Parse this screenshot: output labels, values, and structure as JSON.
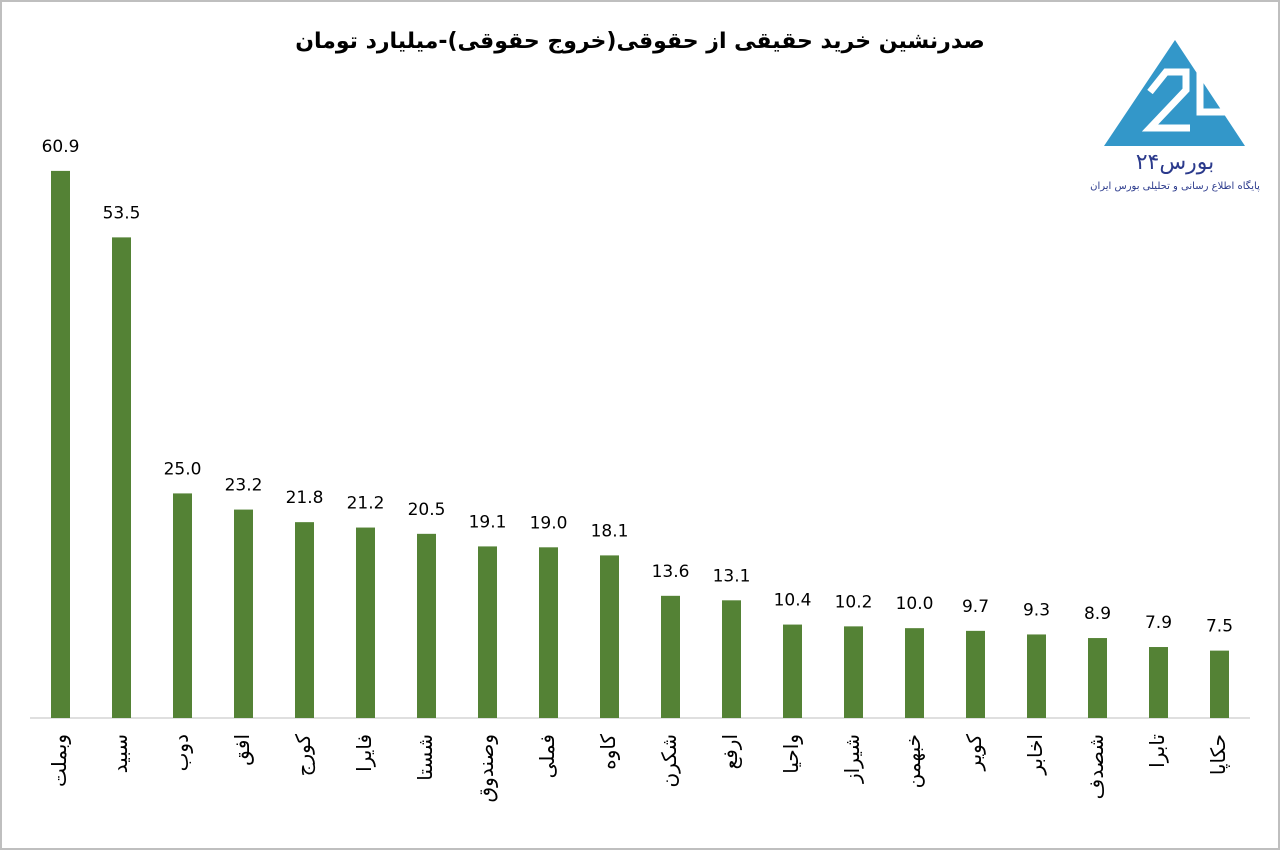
{
  "chart_data": {
    "type": "bar",
    "title": "صدرنشین خرید حقیقی از حقوقی(خروج حقوقی)-میلیارد تومان",
    "categories": [
      "وبملت",
      "سبید",
      "دوب",
      "افق",
      "کورج",
      "فایرا",
      "شستا",
      "وصندوق",
      "فملی",
      "کاوه",
      "شکرن",
      "ارفع",
      "واحیا",
      "شیراز",
      "خبهمن",
      "کویر",
      "اخابر",
      "شصدف",
      "تابرا",
      "حکاپا"
    ],
    "values": [
      60.9,
      53.5,
      25.0,
      23.2,
      21.8,
      21.2,
      20.5,
      19.1,
      19.0,
      18.1,
      13.6,
      13.1,
      10.4,
      10.2,
      10.0,
      9.7,
      9.3,
      8.9,
      7.9,
      7.5
    ],
    "value_labels": [
      "60.9",
      "53.5",
      "25.0",
      "23.2",
      "21.8",
      "21.2",
      "20.5",
      "19.1",
      "19.0",
      "18.1",
      "13.6",
      "13.1",
      "10.4",
      "10.2",
      "10.0",
      "9.7",
      "9.3",
      "8.9",
      "7.9",
      "7.5"
    ],
    "color": "#548235",
    "ylim": [
      0,
      61
    ]
  },
  "logo": {
    "name": "بورس۲۴",
    "tagline": "پایگاه اطلاع رسانی و تحلیلی بورس ایران"
  }
}
